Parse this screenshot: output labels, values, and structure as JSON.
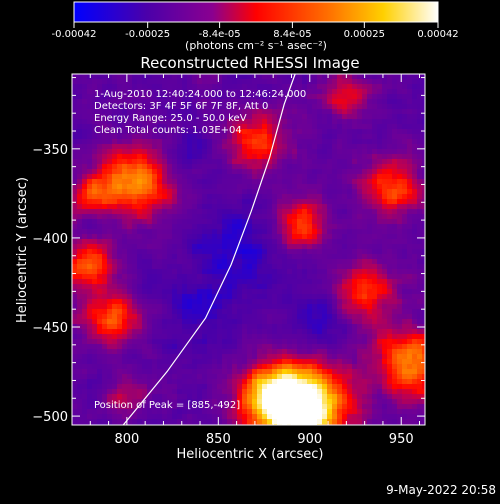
{
  "chart_data": {
    "type": "heatmap",
    "title": "Reconstructed RHESSI Image",
    "xlabel": "Heliocentric X (arcsec)",
    "ylabel": "Heliocentric Y (arcsec)",
    "xlim": [
      770,
      963
    ],
    "ylim": [
      -505,
      -308
    ],
    "x_ticks": [
      800,
      850,
      900,
      950
    ],
    "y_ticks": [
      -350,
      -400,
      -450,
      -500
    ],
    "colorbar": {
      "range": [
        -0.00042,
        0.00042
      ],
      "tick_values": [
        -0.00042,
        -0.00025,
        -8.4e-05,
        8.4e-05,
        0.00025,
        0.00042
      ],
      "tick_labels": [
        "-0.00042",
        "-0.00025",
        "-8.4e-05",
        "8.4e-05",
        "0.00025",
        "0.00042"
      ],
      "units_label": "(photons cm⁻² s⁻¹ asec⁻²)"
    },
    "info_lines": [
      "1-Aug-2010 12:40:24.000 to 12:46:24.000",
      "Detectors: 3F 4F 5F 6F 7F 8F, Att 0",
      "Energy Range: 25.0 - 50.0 keV",
      "Clean    Total counts: 1.03E+04"
    ],
    "peak_label": "Position of Peak = [885,-492]",
    "peak_position": [
      885,
      -492
    ],
    "limb_curve_points": [
      [
        798,
        -505
      ],
      [
        822,
        -475
      ],
      [
        843,
        -445
      ],
      [
        857,
        -415
      ],
      [
        868,
        -385
      ],
      [
        878,
        -355
      ],
      [
        886,
        -325
      ],
      [
        892,
        -308
      ]
    ],
    "hot_regions": [
      {
        "x": 900,
        "y": -495,
        "amp": 1.0,
        "r": 16
      },
      {
        "x": 880,
        "y": -490,
        "amp": 0.85,
        "r": 14
      },
      {
        "x": 805,
        "y": -368,
        "amp": 0.75,
        "r": 14
      },
      {
        "x": 778,
        "y": -415,
        "amp": 0.6,
        "r": 10
      },
      {
        "x": 780,
        "y": -375,
        "amp": 0.4,
        "r": 8
      },
      {
        "x": 895,
        "y": -392,
        "amp": 0.55,
        "r": 10
      },
      {
        "x": 945,
        "y": -372,
        "amp": 0.55,
        "r": 12
      },
      {
        "x": 955,
        "y": -470,
        "amp": 0.65,
        "r": 14
      },
      {
        "x": 870,
        "y": -345,
        "amp": 0.5,
        "r": 12
      },
      {
        "x": 930,
        "y": -430,
        "amp": 0.5,
        "r": 12
      },
      {
        "x": 792,
        "y": -445,
        "amp": 0.55,
        "r": 11
      },
      {
        "x": 800,
        "y": -490,
        "amp": 0.3,
        "r": 8
      },
      {
        "x": 920,
        "y": -320,
        "amp": 0.35,
        "r": 10
      }
    ],
    "cold_regions": [
      {
        "x": 860,
        "y": -405,
        "amp": 0.35,
        "r": 16
      },
      {
        "x": 840,
        "y": -440,
        "amp": 0.3,
        "r": 14
      },
      {
        "x": 905,
        "y": -445,
        "amp": 0.25,
        "r": 12
      },
      {
        "x": 830,
        "y": -355,
        "amp": 0.2,
        "r": 12
      }
    ]
  },
  "footer": {
    "timestamp": "9-May-2022 20:58"
  }
}
